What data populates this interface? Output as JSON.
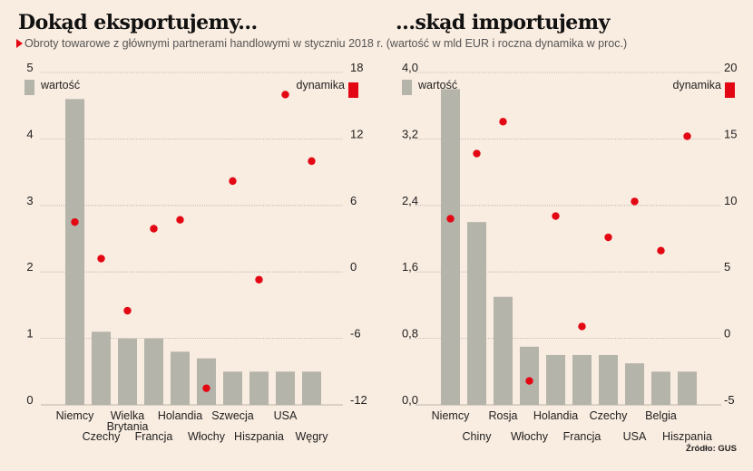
{
  "header": {
    "title_left": "Dokąd eksportujemy...",
    "title_right": "...skąd importujemy",
    "subtitle": "Obroty towarowe z głównymi partnerami handlowymi w styczniu 2018 r. (wartość w mld EUR i roczna dynamika w proc.)"
  },
  "source": "Źródło: GUS",
  "colors": {
    "background": "#f9ece0",
    "bar": "#b5b4aa",
    "dot": "#e30613",
    "grid": "#a8a49c"
  },
  "chart_data": [
    {
      "type": "bar",
      "title": "Dokąd eksportujemy...",
      "categories": [
        "Niemcy",
        "Czechy",
        "Wielka Brytania",
        "Francja",
        "Holandia",
        "Włochy",
        "Szwecja",
        "Hiszpania",
        "USA",
        "Węgry"
      ],
      "category_labels": [
        [
          "Niemcy"
        ],
        [
          "Czechy"
        ],
        [
          "Wielka",
          "Brytania"
        ],
        [
          "Francja"
        ],
        [
          "Holandia"
        ],
        [
          "Włochy"
        ],
        [
          "Szwecja"
        ],
        [
          "Hiszpania"
        ],
        [
          "USA"
        ],
        [
          "Węgry"
        ]
      ],
      "series": [
        {
          "name": "wartość",
          "type": "bar",
          "axis": "left",
          "values": [
            4.6,
            1.1,
            1.0,
            1.0,
            0.8,
            0.7,
            0.5,
            0.5,
            0.5,
            0.5
          ]
        },
        {
          "name": "dynamika",
          "type": "scatter",
          "axis": "right",
          "values": [
            4.5,
            1.2,
            -3.5,
            3.9,
            4.7,
            -10.5,
            8.2,
            -0.7,
            16.0,
            10.0
          ]
        }
      ],
      "left_axis": {
        "ylim": [
          0,
          5
        ],
        "ticks": [
          "0",
          "1",
          "2",
          "3",
          "4",
          "5"
        ],
        "tick_values": [
          0,
          1,
          2,
          3,
          4,
          5
        ]
      },
      "right_axis": {
        "ylim": [
          -12,
          18
        ],
        "ticks": [
          "-12",
          "-6",
          "0",
          "6",
          "12",
          "18"
        ],
        "tick_values": [
          -12,
          -6,
          0,
          6,
          12,
          18
        ]
      },
      "legend": {
        "bar_label": "wartość",
        "dot_label": "dynamika",
        "placement": "top"
      },
      "grid": true
    },
    {
      "type": "bar",
      "title": "...skąd importujemy",
      "categories": [
        "Niemcy",
        "Chiny",
        "Rosja",
        "Włochy",
        "Holandia",
        "Francja",
        "Czechy",
        "USA",
        "Belgia",
        "Hiszpania"
      ],
      "category_labels": [
        [
          "Niemcy"
        ],
        [
          "Chiny"
        ],
        [
          "Rosja"
        ],
        [
          "Włochy"
        ],
        [
          "Holandia"
        ],
        [
          "Francja"
        ],
        [
          "Czechy"
        ],
        [
          "USA"
        ],
        [
          "Belgia"
        ],
        [
          "Hiszpania"
        ]
      ],
      "series": [
        {
          "name": "wartość",
          "type": "bar",
          "axis": "left",
          "values": [
            3.8,
            2.2,
            1.3,
            0.7,
            0.6,
            0.6,
            0.6,
            0.5,
            0.4,
            0.4
          ]
        },
        {
          "name": "dynamika",
          "type": "scatter",
          "axis": "right",
          "values": [
            9.0,
            13.9,
            16.3,
            -3.2,
            9.2,
            0.9,
            7.6,
            10.3,
            6.6,
            15.2
          ]
        }
      ],
      "left_axis": {
        "ylim": [
          0,
          4
        ],
        "ticks": [
          "0,0",
          "0,8",
          "1,6",
          "2,4",
          "3,2",
          "4,0"
        ],
        "tick_values": [
          0,
          0.8,
          1.6,
          2.4,
          3.2,
          4.0
        ]
      },
      "right_axis": {
        "ylim": [
          -5,
          20
        ],
        "ticks": [
          "-5",
          "0",
          "5",
          "10",
          "15",
          "20"
        ],
        "tick_values": [
          -5,
          0,
          5,
          10,
          15,
          20
        ]
      },
      "legend": {
        "bar_label": "wartość",
        "dot_label": "dynamika",
        "placement": "top"
      },
      "grid": true
    }
  ]
}
